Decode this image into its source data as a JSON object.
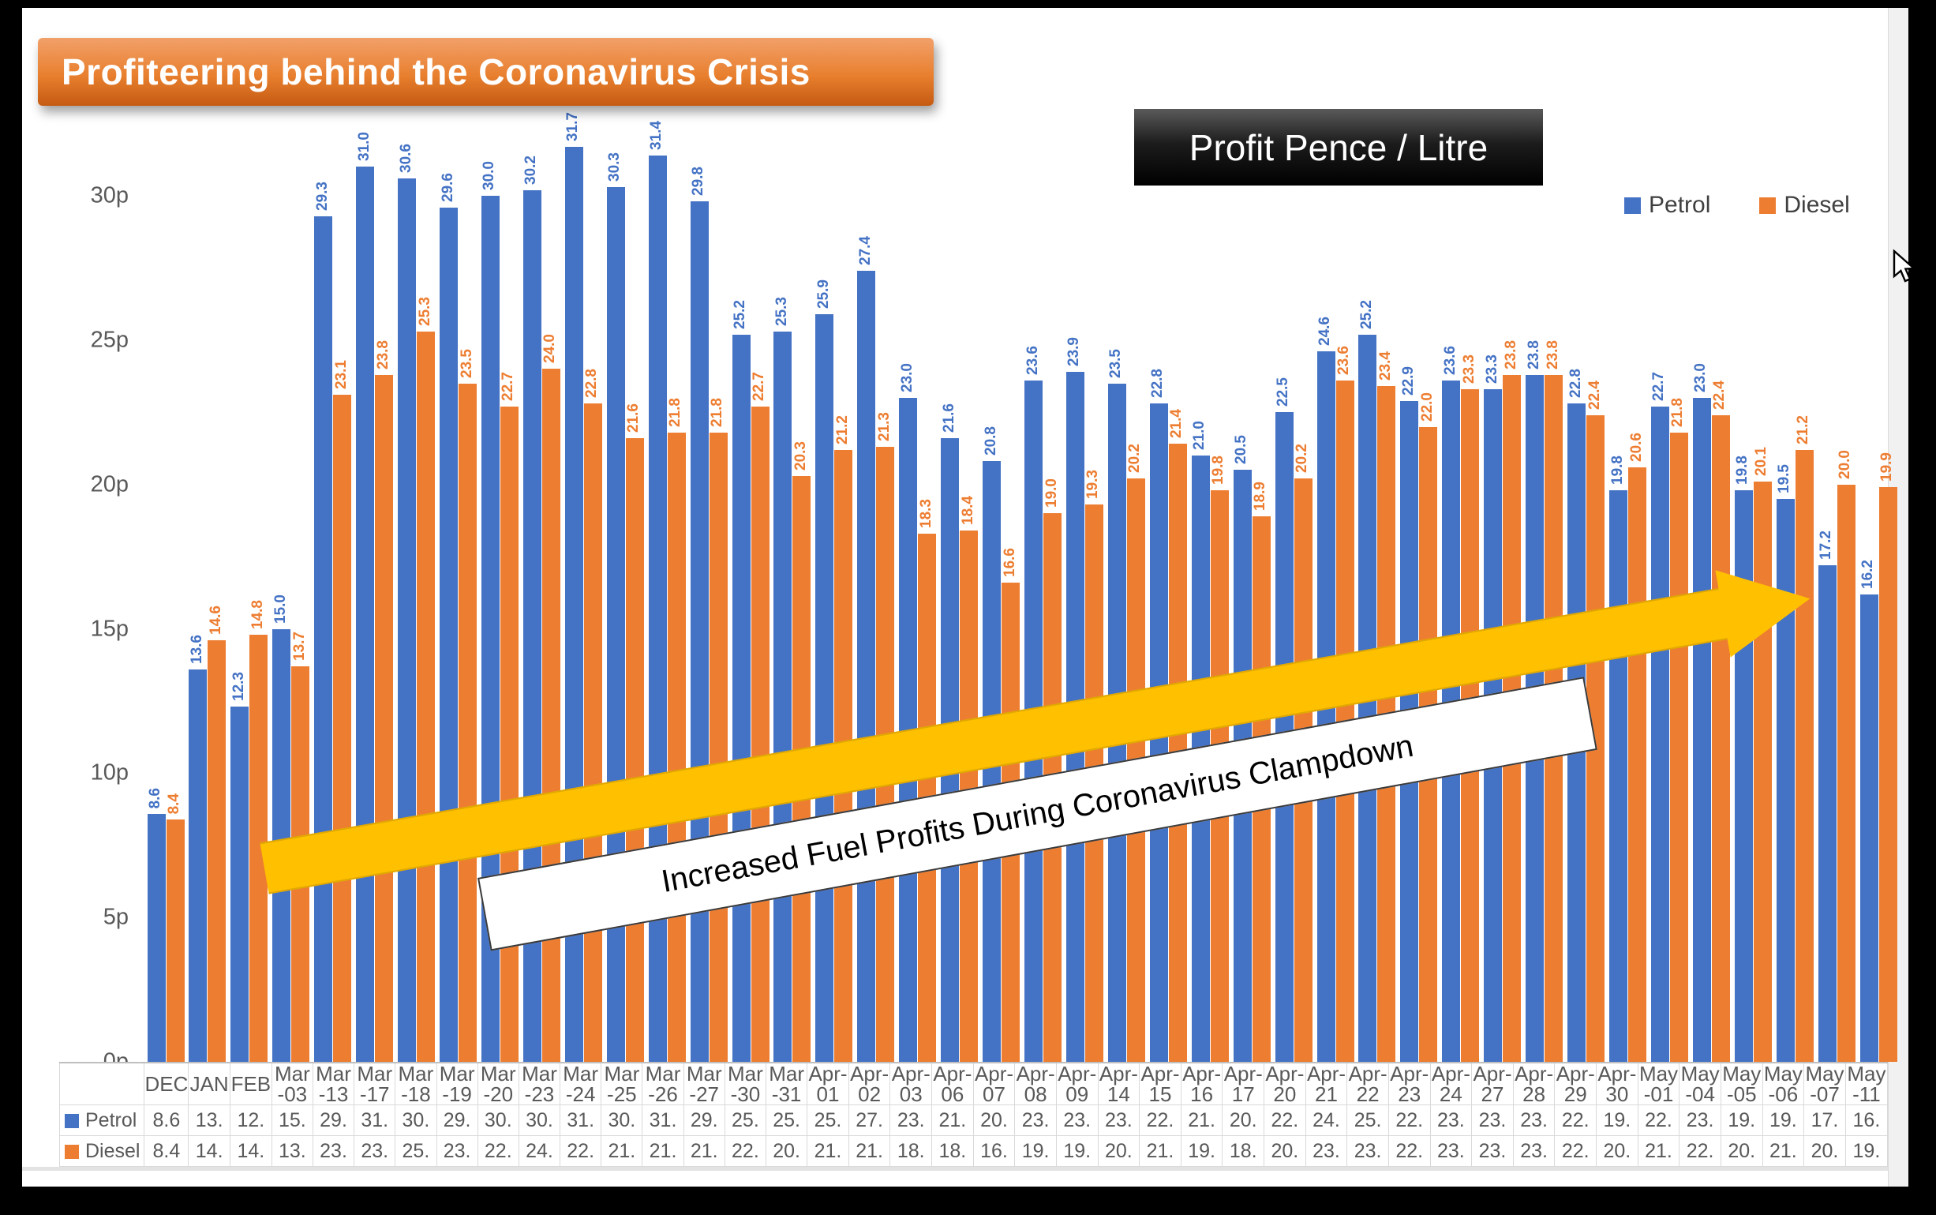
{
  "title": "Profiteering behind the Coronavirus Crisis",
  "chart_label": "Profit Pence / Litre",
  "legend": [
    {
      "name": "Petrol",
      "color": "#4472C4"
    },
    {
      "name": "Diesel",
      "color": "#ED7D31"
    }
  ],
  "annotation": {
    "arrow_text": "Increased Fuel Profits During Coronavirus Clampdown"
  },
  "colors": {
    "petrol": "#4472C4",
    "diesel": "#ED7D31",
    "arrow": "#FFC000"
  },
  "y_axis": {
    "ticks": [
      "0p",
      "5p",
      "10p",
      "15p",
      "20p",
      "25p",
      "30p"
    ],
    "unit": "pence"
  },
  "chart_data": {
    "type": "bar",
    "title": "Profit Pence / Litre",
    "categories": [
      "DEC",
      "JAN",
      "FEB",
      "Mar-03",
      "Mar-13",
      "Mar-17",
      "Mar-18",
      "Mar-19",
      "Mar-20",
      "Mar-23",
      "Mar-24",
      "Mar-25",
      "Mar-26",
      "Mar-27",
      "Mar-30",
      "Mar-31",
      "Apr-01",
      "Apr-02",
      "Apr-03",
      "Apr-06",
      "Apr-07",
      "Apr-08",
      "Apr-09",
      "Apr-14",
      "Apr-15",
      "Apr-16",
      "Apr-17",
      "Apr-20",
      "Apr-21",
      "Apr-22",
      "Apr-23",
      "Apr-24",
      "Apr-27",
      "Apr-28",
      "Apr-29",
      "Apr-30",
      "May-01",
      "May-04",
      "May-05",
      "May-06",
      "May-07",
      "May-11"
    ],
    "category_axis_lines": [
      [
        "DEC",
        ""
      ],
      [
        "JAN",
        ""
      ],
      [
        "FEB",
        ""
      ],
      [
        "Mar",
        "-03"
      ],
      [
        "Mar",
        "-13"
      ],
      [
        "Mar",
        "-17"
      ],
      [
        "Mar",
        "-18"
      ],
      [
        "Mar",
        "-19"
      ],
      [
        "Mar",
        "-20"
      ],
      [
        "Mar",
        "-23"
      ],
      [
        "Mar",
        "-24"
      ],
      [
        "Mar",
        "-25"
      ],
      [
        "Mar",
        "-26"
      ],
      [
        "Mar",
        "-27"
      ],
      [
        "Mar",
        "-30"
      ],
      [
        "Mar",
        "-31"
      ],
      [
        "Apr-",
        "01"
      ],
      [
        "Apr-",
        "02"
      ],
      [
        "Apr-",
        "03"
      ],
      [
        "Apr-",
        "06"
      ],
      [
        "Apr-",
        "07"
      ],
      [
        "Apr-",
        "08"
      ],
      [
        "Apr-",
        "09"
      ],
      [
        "Apr-",
        "14"
      ],
      [
        "Apr-",
        "15"
      ],
      [
        "Apr-",
        "16"
      ],
      [
        "Apr-",
        "17"
      ],
      [
        "Apr-",
        "20"
      ],
      [
        "Apr-",
        "21"
      ],
      [
        "Apr-",
        "22"
      ],
      [
        "Apr-",
        "23"
      ],
      [
        "Apr-",
        "24"
      ],
      [
        "Apr-",
        "27"
      ],
      [
        "Apr-",
        "28"
      ],
      [
        "Apr-",
        "29"
      ],
      [
        "Apr-",
        "30"
      ],
      [
        "May",
        "-01"
      ],
      [
        "May",
        "-04"
      ],
      [
        "May",
        "-05"
      ],
      [
        "May",
        "-06"
      ],
      [
        "May",
        "-07"
      ],
      [
        "May",
        "-11"
      ]
    ],
    "series": [
      {
        "name": "Petrol",
        "color": "#4472C4",
        "values": [
          8.6,
          13.6,
          12.3,
          15.0,
          29.3,
          31.0,
          30.6,
          29.6,
          30.0,
          30.2,
          31.7,
          30.3,
          31.4,
          29.8,
          25.2,
          25.3,
          25.9,
          27.4,
          23.0,
          21.6,
          20.8,
          23.6,
          23.9,
          23.5,
          22.8,
          21.0,
          20.5,
          22.5,
          24.6,
          25.2,
          22.9,
          23.6,
          23.3,
          23.8,
          22.8,
          19.8,
          22.7,
          23.0,
          19.8,
          19.5,
          17.2,
          16.2
        ]
      },
      {
        "name": "Diesel",
        "color": "#ED7D31",
        "values": [
          8.4,
          14.6,
          14.8,
          13.7,
          23.1,
          23.8,
          25.3,
          23.5,
          22.7,
          24.0,
          22.8,
          21.6,
          21.8,
          21.8,
          22.7,
          20.3,
          21.2,
          21.3,
          18.3,
          18.4,
          16.6,
          19.0,
          19.3,
          20.2,
          21.4,
          19.8,
          18.9,
          20.2,
          23.6,
          23.4,
          22.0,
          23.3,
          23.8,
          23.8,
          22.4,
          20.6,
          21.8,
          22.4,
          20.1,
          21.2,
          20.0,
          19.9
        ]
      }
    ],
    "ylim": [
      0,
      32.5
    ],
    "grid": false,
    "legend_position": "top-right",
    "data_labels": "rotated-90-above-bars",
    "data_table_shown": true
  },
  "table": {
    "row_labels": [
      "Petrol",
      "Diesel"
    ]
  }
}
